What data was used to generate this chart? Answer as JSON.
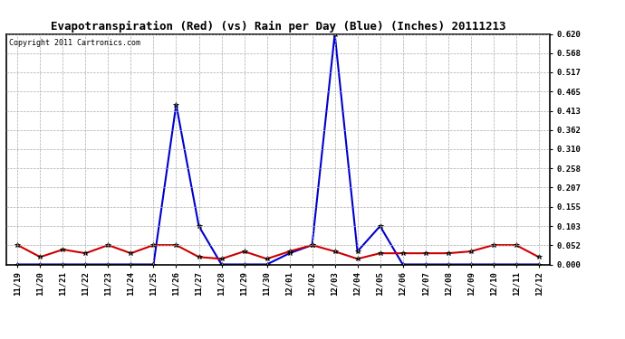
{
  "title": "Evapotranspiration (Red) (vs) Rain per Day (Blue) (Inches) 20111213",
  "copyright": "Copyright 2011 Cartronics.com",
  "labels": [
    "11/19",
    "11/20",
    "11/21",
    "11/22",
    "11/23",
    "11/24",
    "11/25",
    "11/26",
    "11/27",
    "11/28",
    "11/29",
    "11/30",
    "12/01",
    "12/02",
    "12/03",
    "12/04",
    "12/05",
    "12/06",
    "12/07",
    "12/08",
    "12/09",
    "12/10",
    "12/11",
    "12/12"
  ],
  "blue_rain": [
    0.0,
    0.0,
    0.0,
    0.0,
    0.0,
    0.0,
    0.0,
    0.43,
    0.103,
    0.0,
    0.0,
    0.0,
    0.03,
    0.052,
    0.62,
    0.035,
    0.103,
    0.0,
    0.0,
    0.0,
    0.0,
    0.0,
    0.0,
    0.0
  ],
  "red_et": [
    0.052,
    0.02,
    0.04,
    0.03,
    0.052,
    0.03,
    0.052,
    0.052,
    0.02,
    0.015,
    0.035,
    0.015,
    0.035,
    0.052,
    0.035,
    0.015,
    0.03,
    0.03,
    0.03,
    0.03,
    0.035,
    0.052,
    0.052,
    0.02
  ],
  "ylim": [
    0.0,
    0.62
  ],
  "yticks": [
    0.0,
    0.052,
    0.103,
    0.155,
    0.207,
    0.258,
    0.31,
    0.362,
    0.413,
    0.465,
    0.517,
    0.568,
    0.62
  ],
  "blue_color": "#0000cc",
  "red_color": "#cc0000",
  "bg_color": "#ffffff",
  "grid_color": "#aaaaaa",
  "title_fontsize": 9,
  "copyright_fontsize": 6,
  "tick_fontsize": 6.5
}
